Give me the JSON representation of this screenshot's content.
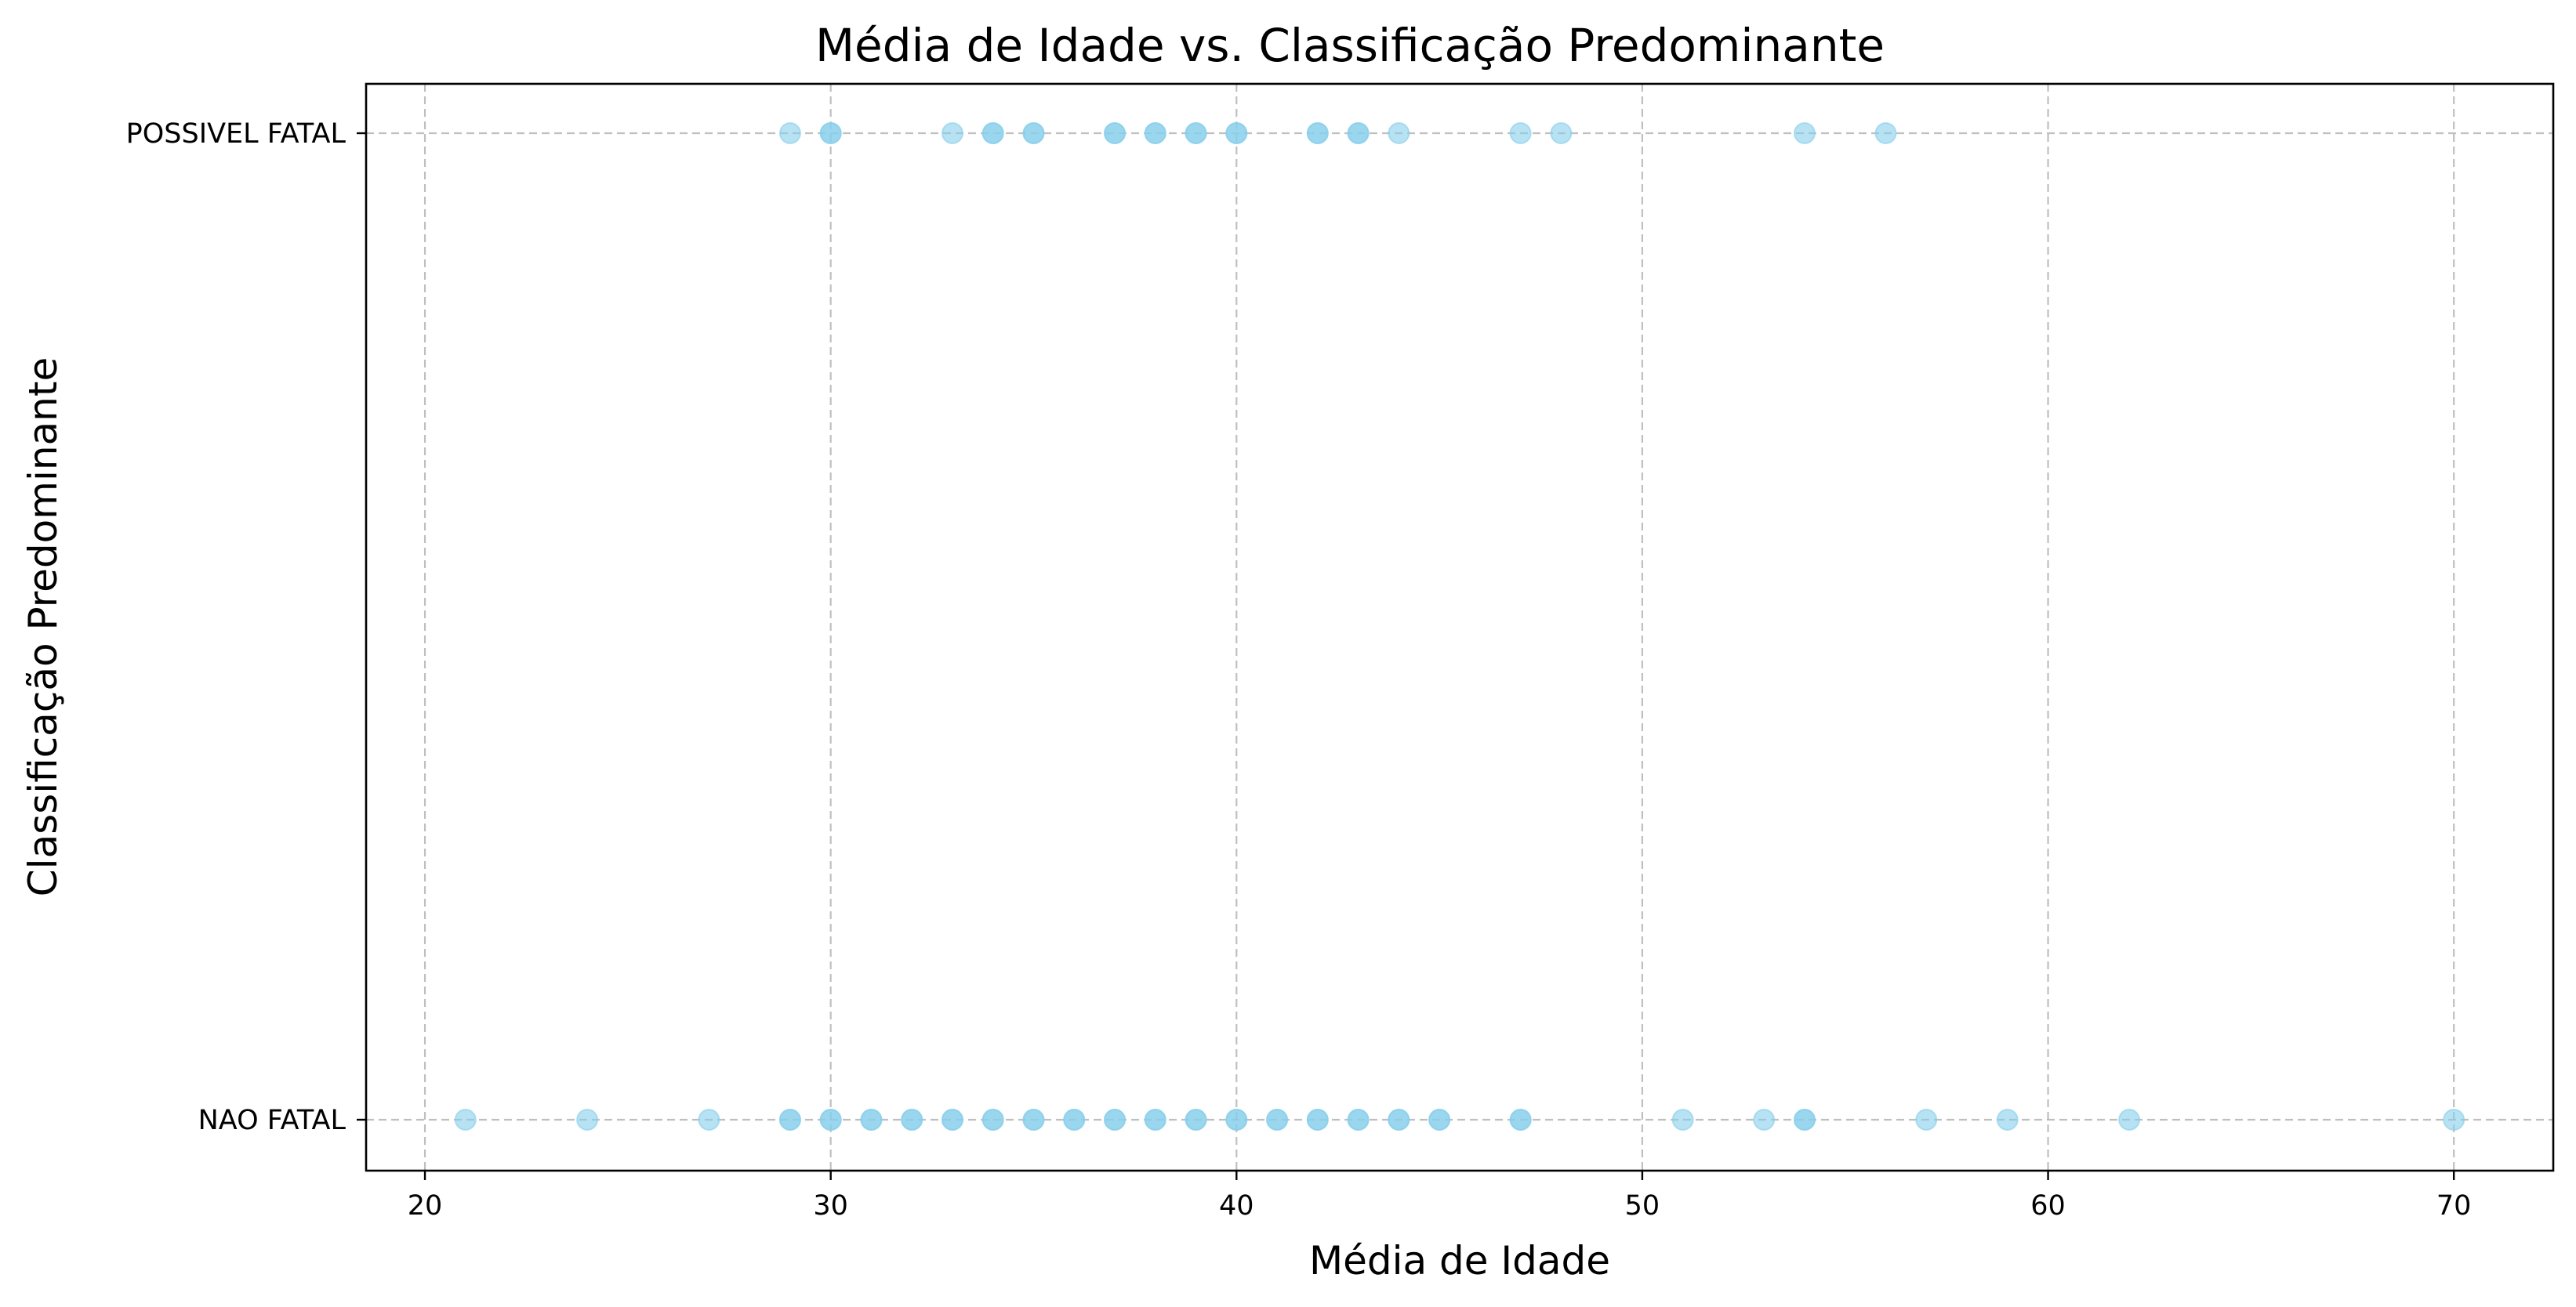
{
  "chart_data": {
    "type": "scatter",
    "title": "Média de Idade vs. Classificação Predominante",
    "xlabel": "Média de Idade",
    "ylabel": "Classificação Predominante",
    "xlim": [
      18.55,
      72.45
    ],
    "xticks": [
      20,
      30,
      40,
      50,
      60,
      70
    ],
    "categories": [
      "NAO FATAL",
      "POSSIVEL FATAL"
    ],
    "grid": true,
    "marker_color": "#87CEEB",
    "marker_alpha": 0.6,
    "series": [
      {
        "category": "POSSIVEL FATAL",
        "x": [
          29,
          30,
          30,
          33,
          34,
          34,
          35,
          35,
          37,
          37,
          38,
          38,
          39,
          39,
          40,
          40,
          42,
          42,
          43,
          43,
          44,
          47,
          48,
          54,
          56
        ]
      },
      {
        "category": "NAO FATAL",
        "x": [
          21,
          24,
          27,
          29,
          29,
          30,
          30,
          31,
          31,
          32,
          32,
          33,
          33,
          34,
          34,
          35,
          35,
          36,
          36,
          37,
          37,
          38,
          38,
          39,
          39,
          40,
          40,
          41,
          41,
          42,
          42,
          43,
          43,
          44,
          44,
          45,
          45,
          47,
          47,
          51,
          53,
          54,
          54,
          57,
          59,
          62,
          70
        ]
      }
    ]
  }
}
